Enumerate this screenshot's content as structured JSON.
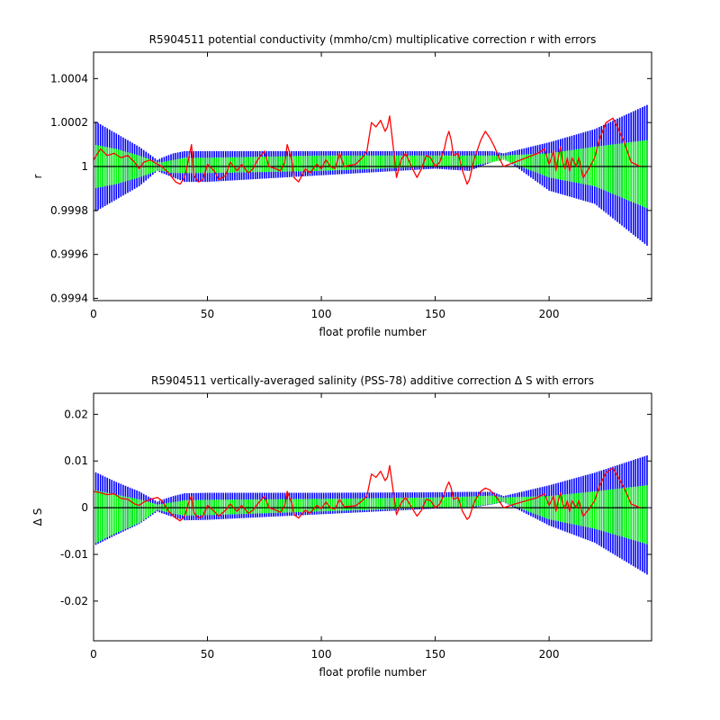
{
  "chart_data": [
    {
      "type": "line",
      "title": "R5904511 potential conductivity (mmho/cm) multiplicative correction r with errors",
      "xlabel": "float profile number",
      "ylabel": "r",
      "xlim": [
        0,
        245
      ],
      "ylim": [
        0.99939,
        1.00052
      ],
      "xticks": [
        0,
        50,
        100,
        150,
        200
      ],
      "xtick_labels": [
        "0",
        "50",
        "100",
        "150",
        "200"
      ],
      "yticks": [
        0.9994,
        0.9996,
        0.9998,
        1,
        1.0002,
        1.0004
      ],
      "ytick_labels": [
        "0.9994",
        "0.9996",
        "0.9998",
        "1",
        "1.0002",
        "1.0004"
      ],
      "grid": false,
      "colors": {
        "error_outer": "#0000ff",
        "error_inner": "#00ff00",
        "fit": "#000000",
        "estimate": "#ff0000"
      },
      "series": [
        {
          "role": "error_outer",
          "x": [
            0,
            10,
            20,
            28,
            30,
            35,
            40,
            50,
            100,
            150,
            165,
            175,
            180,
            200,
            220,
            243
          ],
          "upper": [
            1.00021,
            1.00015,
            1.00009,
            1.00003,
            1.00004,
            1.00006,
            1.00007,
            1.00007,
            1.00007,
            1.00007,
            1.00007,
            1.00007,
            1.00006,
            1.00011,
            1.00017,
            1.00028
          ],
          "lower": [
            0.99979,
            0.99985,
            0.99991,
            0.99998,
            0.99997,
            0.99995,
            0.99993,
            0.99993,
            0.99996,
            0.99999,
            0.99998,
            1.00002,
            1.00004,
            0.99989,
            0.99983,
            0.99964
          ]
        },
        {
          "role": "error_inner",
          "x": [
            0,
            10,
            20,
            28,
            30,
            35,
            40,
            50,
            100,
            150,
            165,
            175,
            180,
            200,
            220,
            243
          ],
          "upper": [
            1.0001,
            1.00008,
            1.00005,
            1.00002,
            1.00002,
            1.00003,
            1.00004,
            1.00004,
            1.00005,
            1.00005,
            1.00005,
            1.00005,
            1.00005,
            1.00006,
            1.00009,
            1.00012
          ],
          "lower": [
            0.9999,
            0.99992,
            0.99995,
            0.99998,
            0.99998,
            0.99997,
            0.99997,
            0.99997,
            0.99998,
            1.0,
            1.0,
            1.00002,
            1.00003,
            0.99995,
            0.99991,
            0.99981
          ]
        },
        {
          "role": "fit",
          "x": [
            0,
            243
          ],
          "y": [
            1.0,
            1.0
          ]
        },
        {
          "role": "estimate",
          "x": [
            0,
            3,
            6,
            9,
            12,
            15,
            18,
            20,
            22,
            25,
            28,
            30,
            33,
            36,
            38,
            40,
            42,
            43,
            44,
            46,
            48,
            50,
            53,
            55,
            58,
            60,
            63,
            65,
            68,
            70,
            72,
            75,
            77,
            80,
            82,
            84,
            85,
            87,
            88,
            90,
            93,
            95,
            98,
            100,
            102,
            104,
            106,
            108,
            110,
            115,
            118,
            120,
            122,
            124,
            126,
            128,
            129,
            130,
            132,
            133,
            135,
            137,
            140,
            142,
            144,
            146,
            148,
            150,
            152,
            154,
            155,
            156,
            157,
            158,
            160,
            162,
            164,
            165,
            167,
            168,
            170,
            172,
            174,
            176,
            178,
            180,
            185,
            190,
            195,
            198,
            200,
            202,
            203,
            204,
            205,
            206,
            207,
            208,
            209,
            210,
            212,
            213,
            215,
            218,
            220,
            222,
            225,
            228,
            230,
            233,
            236,
            240
          ],
          "y": [
            1.00003,
            1.00008,
            1.00005,
            1.00006,
            1.00004,
            1.00005,
            1.00002,
            0.99999,
            1.00002,
            1.00003,
            1.00001,
            1.0,
            0.99997,
            0.99993,
            0.99992,
            0.99995,
            1.00005,
            1.0001,
            0.99996,
            0.99993,
            0.99994,
            1.00001,
            0.99998,
            0.99994,
            0.99996,
            1.00002,
            0.99998,
            1.00001,
            0.99997,
            0.99999,
            1.00003,
            1.00007,
            1.0,
            0.99999,
            0.99998,
            1.00002,
            1.0001,
            1.00003,
            0.99995,
            0.99993,
            0.99999,
            0.99997,
            1.00001,
            0.99999,
            1.00003,
            1.0,
            0.99999,
            1.00006,
            1.0,
            1.00001,
            1.00004,
            1.00007,
            1.0002,
            1.00018,
            1.00021,
            1.00016,
            1.00018,
            1.00023,
            1.00005,
            0.99995,
            1.00003,
            1.00006,
            0.99999,
            0.99995,
            0.99999,
            1.00005,
            1.00004,
            1.0,
            1.00002,
            1.00008,
            1.00013,
            1.00016,
            1.00012,
            1.00005,
            1.00006,
            0.99998,
            0.99992,
            0.99994,
            1.00003,
            1.00006,
            1.00012,
            1.00016,
            1.00013,
            1.00009,
            1.00004,
            1.0,
            1.00002,
            1.00004,
            1.00006,
            1.00008,
            1.00001,
            1.00007,
            0.99998,
            1.00004,
            1.00009,
            1.00002,
            0.99999,
            1.00004,
            0.99998,
            1.00004,
            1.0,
            1.00004,
            0.99995,
            1.0,
            1.00004,
            1.00012,
            1.0002,
            1.00022,
            1.00018,
            1.00011,
            1.00002,
            1.0
          ]
        }
      ]
    },
    {
      "type": "line",
      "title": "R5904511 vertically-averaged salinity (PSS-78) additive correction Δ S with errors",
      "xlabel": "float profile number",
      "ylabel": "Δ S",
      "xlim": [
        0,
        245
      ],
      "ylim": [
        -0.0285,
        0.0245
      ],
      "xticks": [
        0,
        50,
        100,
        150,
        200
      ],
      "xtick_labels": [
        "0",
        "50",
        "100",
        "150",
        "200"
      ],
      "yticks": [
        -0.02,
        -0.01,
        0,
        0.01,
        0.02
      ],
      "ytick_labels": [
        "-0.02",
        "-0.01",
        "0",
        "0.01",
        "0.02"
      ],
      "grid": false,
      "colors": {
        "error_outer": "#0000ff",
        "error_inner": "#00ff00",
        "fit": "#000000",
        "estimate": "#ff0000"
      },
      "series": [
        {
          "role": "error_outer",
          "x": [
            0,
            10,
            20,
            28,
            30,
            35,
            40,
            50,
            100,
            150,
            165,
            175,
            180,
            200,
            220,
            243
          ],
          "upper": [
            0.0078,
            0.0055,
            0.0035,
            0.0013,
            0.0017,
            0.0025,
            0.0031,
            0.0032,
            0.0032,
            0.0033,
            0.0034,
            0.0034,
            0.0025,
            0.0048,
            0.0075,
            0.0112
          ],
          "lower": [
            -0.0082,
            -0.0058,
            -0.0035,
            -0.0008,
            -0.0012,
            -0.002,
            -0.0027,
            -0.0026,
            -0.0014,
            -0.0002,
            -0.0001,
            0.0007,
            0.0012,
            -0.0038,
            -0.0075,
            -0.0143
          ]
        },
        {
          "role": "error_inner",
          "x": [
            0,
            10,
            20,
            28,
            30,
            35,
            40,
            50,
            100,
            150,
            165,
            175,
            180,
            200,
            220,
            243
          ],
          "upper": [
            0.0038,
            0.0028,
            0.0018,
            0.0007,
            0.0008,
            0.0012,
            0.0016,
            0.0017,
            0.0019,
            0.0022,
            0.0024,
            0.0026,
            0.0022,
            0.0025,
            0.0035,
            0.0048
          ],
          "lower": [
            -0.0078,
            -0.0054,
            -0.0033,
            -0.0005,
            -0.0007,
            -0.0013,
            -0.0017,
            -0.0016,
            -0.0008,
            0.0,
            0.0001,
            0.0008,
            0.0012,
            -0.0025,
            -0.0045,
            -0.0078
          ]
        },
        {
          "role": "fit",
          "x": [
            0,
            243
          ],
          "y": [
            0.0,
            0.0
          ]
        },
        {
          "role": "estimate",
          "x": [
            0,
            3,
            6,
            9,
            12,
            15,
            18,
            20,
            22,
            25,
            28,
            30,
            33,
            36,
            38,
            40,
            42,
            43,
            44,
            46,
            48,
            50,
            53,
            55,
            58,
            60,
            63,
            65,
            68,
            70,
            72,
            75,
            77,
            80,
            82,
            84,
            85,
            87,
            88,
            90,
            93,
            95,
            98,
            100,
            102,
            104,
            106,
            108,
            110,
            115,
            118,
            120,
            122,
            124,
            126,
            128,
            129,
            130,
            132,
            133,
            135,
            137,
            140,
            142,
            144,
            146,
            148,
            150,
            152,
            154,
            155,
            156,
            157,
            158,
            160,
            162,
            164,
            165,
            167,
            168,
            170,
            172,
            174,
            176,
            178,
            180,
            185,
            190,
            195,
            198,
            200,
            202,
            203,
            204,
            205,
            206,
            207,
            208,
            209,
            210,
            212,
            213,
            215,
            218,
            220,
            222,
            225,
            228,
            230,
            233,
            236,
            240
          ],
          "y": [
            0.0035,
            0.0032,
            0.0028,
            0.003,
            0.002,
            0.0018,
            0.0008,
            0.0005,
            0.0012,
            0.0018,
            0.0022,
            0.0015,
            -0.0008,
            -0.0022,
            -0.0028,
            -0.0018,
            0.0015,
            0.0025,
            -0.001,
            -0.0022,
            -0.0018,
            0.0005,
            -0.0008,
            -0.0018,
            -0.0005,
            0.0008,
            -0.0008,
            0.0005,
            -0.0012,
            -0.0005,
            0.0008,
            0.0025,
            0.0,
            -0.0005,
            -0.001,
            0.0005,
            0.0035,
            0.001,
            -0.0015,
            -0.0022,
            -0.0005,
            -0.0012,
            0.0005,
            -0.0002,
            0.0012,
            0.0,
            -0.0003,
            0.0018,
            0.0002,
            0.0004,
            0.0015,
            0.0025,
            0.0072,
            0.0065,
            0.0078,
            0.0058,
            0.0065,
            0.009,
            0.002,
            -0.0015,
            0.001,
            0.0022,
            -0.0002,
            -0.0018,
            -0.0005,
            0.0018,
            0.0015,
            0.0,
            0.0008,
            0.003,
            0.0045,
            0.0055,
            0.0042,
            0.0018,
            0.0022,
            -0.0008,
            -0.0025,
            -0.002,
            0.001,
            0.002,
            0.0035,
            0.0042,
            0.0038,
            0.0028,
            0.0015,
            0.0,
            0.0008,
            0.0015,
            0.0022,
            0.003,
            0.0005,
            0.0025,
            -0.0008,
            0.0015,
            0.0032,
            0.0008,
            -0.0002,
            0.0015,
            -0.0008,
            0.0015,
            0.0,
            0.0015,
            -0.0018,
            0.0,
            0.0015,
            0.0045,
            0.0075,
            0.0085,
            0.0068,
            0.0042,
            0.0008,
            0.0
          ]
        }
      ]
    }
  ]
}
